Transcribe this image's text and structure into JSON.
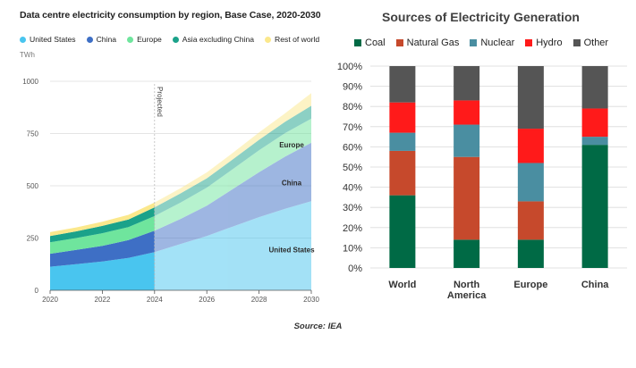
{
  "left_chart": {
    "title": "Data centre electricity consumption by region, Base Case, 2020-2030",
    "unit": "TWh",
    "projected_label": "Projected",
    "legend": [
      {
        "name": "United States",
        "color": "#49c5ef"
      },
      {
        "name": "China",
        "color": "#3e6fc5"
      },
      {
        "name": "Europe",
        "color": "#6fe59d"
      },
      {
        "name": "Asia excluding China",
        "color": "#1ba28a"
      },
      {
        "name": "Rest of world",
        "color": "#fbe88c"
      }
    ],
    "area_labels": {
      "united_states": "United States",
      "china": "China",
      "europe": "Europe"
    },
    "y_ticks": [
      "0",
      "250",
      "500",
      "750",
      "1000"
    ],
    "x_ticks": [
      "2020",
      "2022",
      "2024",
      "2026",
      "2028",
      "2030"
    ]
  },
  "right_chart": {
    "title": "Sources of Electricity Generation",
    "legend": [
      {
        "name": "Coal",
        "color": "#006a45"
      },
      {
        "name": "Natural Gas",
        "color": "#c6492c"
      },
      {
        "name": "Nuclear",
        "color": "#4a8ea1"
      },
      {
        "name": "Hydro",
        "color": "#ff1a1a"
      },
      {
        "name": "Other",
        "color": "#555555"
      }
    ],
    "y_ticks": [
      "0%",
      "10%",
      "20%",
      "30%",
      "40%",
      "50%",
      "60%",
      "70%",
      "80%",
      "90%",
      "100%"
    ],
    "category_labels": [
      [
        "World"
      ],
      [
        "North",
        "America"
      ],
      [
        "Europe"
      ],
      [
        "China"
      ]
    ]
  },
  "chart_data": [
    {
      "type": "area",
      "stacked": true,
      "title": "Data centre electricity consumption by region, Base Case, 2020-2030",
      "ylabel": "TWh",
      "ylim": [
        0,
        1000
      ],
      "xlim": [
        2020,
        2030
      ],
      "projected_from": 2024,
      "x": [
        2020,
        2021,
        2022,
        2023,
        2024,
        2025,
        2026,
        2027,
        2028,
        2029,
        2030
      ],
      "series": [
        {
          "name": "United States",
          "values": [
            113,
            125,
            138,
            155,
            183,
            222,
            260,
            305,
            350,
            390,
            426
          ]
        },
        {
          "name": "China",
          "values": [
            62,
            68,
            75,
            85,
            102,
            120,
            145,
            180,
            215,
            250,
            280
          ]
        },
        {
          "name": "Europe",
          "values": [
            55,
            57,
            60,
            62,
            70,
            78,
            86,
            95,
            105,
            112,
            115
          ]
        },
        {
          "name": "Asia excluding China",
          "values": [
            30,
            32,
            35,
            37,
            42,
            44,
            45,
            47,
            50,
            55,
            62
          ]
        },
        {
          "name": "Rest of world",
          "values": [
            18,
            19,
            20,
            22,
            23,
            25,
            28,
            31,
            35,
            40,
            60
          ]
        }
      ]
    },
    {
      "type": "bar",
      "stacked": true,
      "title": "Sources of Electricity Generation",
      "categories": [
        "World",
        "North America",
        "Europe",
        "China"
      ],
      "ylim": [
        0,
        100
      ],
      "series": [
        {
          "name": "Coal",
          "values": [
            36,
            14,
            14,
            61
          ]
        },
        {
          "name": "Natural Gas",
          "values": [
            22,
            41,
            19,
            0
          ]
        },
        {
          "name": "Nuclear",
          "values": [
            9,
            16,
            19,
            4
          ]
        },
        {
          "name": "Hydro",
          "values": [
            15,
            12,
            17,
            14
          ]
        },
        {
          "name": "Other",
          "values": [
            18,
            17,
            31,
            21
          ]
        }
      ]
    }
  ],
  "source": "Source: IEA"
}
